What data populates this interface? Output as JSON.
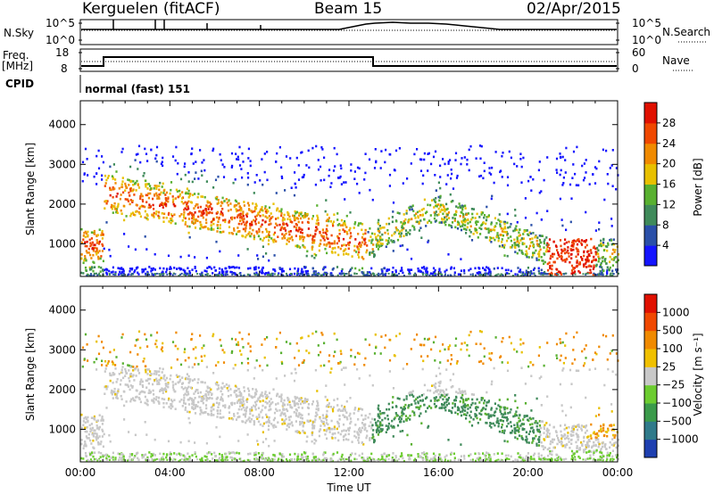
{
  "header": {
    "station": "Kerguelen (fitACF)",
    "beam": "Beam 15",
    "date": "02/Apr/2015"
  },
  "top_panels": {
    "nsky_label": "N.Sky",
    "nsearch_label": "N.Search",
    "noise_ticks": [
      "10^5",
      "10^0"
    ],
    "freq_label": "Freq.",
    "freq_unit": "[MHz]",
    "freq_ticks": [
      "18",
      "8"
    ],
    "nave_label": "Nave",
    "nave_ticks": [
      "60",
      "0"
    ],
    "cpid_label": "CPID",
    "cpid_text": "normal (fast) 151"
  },
  "chart_data": [
    {
      "type": "heatmap",
      "name": "power",
      "ylabel": "Slant Range [km]",
      "yticks": [
        "1000",
        "2000",
        "3000",
        "4000"
      ],
      "ylim": [
        180,
        4600
      ],
      "colorbar_label": "Power [dB]",
      "colorbar_ticks": [
        "4",
        "8",
        "12",
        "16",
        "20",
        "24",
        "28"
      ],
      "colorbar_colors": [
        "#1414ff",
        "#2a4fa8",
        "#3f8a5a",
        "#58b030",
        "#e8c000",
        "#f08a00",
        "#f04800",
        "#e01000"
      ]
    },
    {
      "type": "heatmap",
      "name": "velocity",
      "ylabel": "Slant Range [km]",
      "yticks": [
        "1000",
        "2000",
        "3000",
        "4000"
      ],
      "ylim": [
        180,
        4600
      ],
      "colorbar_label": "Velocity [m s⁻¹]",
      "colorbar_ticks": [
        "1000",
        "500",
        "100",
        "25",
        "−25",
        "−100",
        "−500",
        "−1000"
      ],
      "colorbar_colors": [
        "#1e3fb0",
        "#2f7a8a",
        "#3a9a4a",
        "#6ccc30",
        "#c8c8c8",
        "#f0c000",
        "#f08a00",
        "#f04800",
        "#e01000"
      ]
    }
  ],
  "xaxis": {
    "ticks": [
      "00:00",
      "04:00",
      "08:00",
      "12:00",
      "16:00",
      "20:00",
      "00:00"
    ],
    "label": "Time UT"
  }
}
